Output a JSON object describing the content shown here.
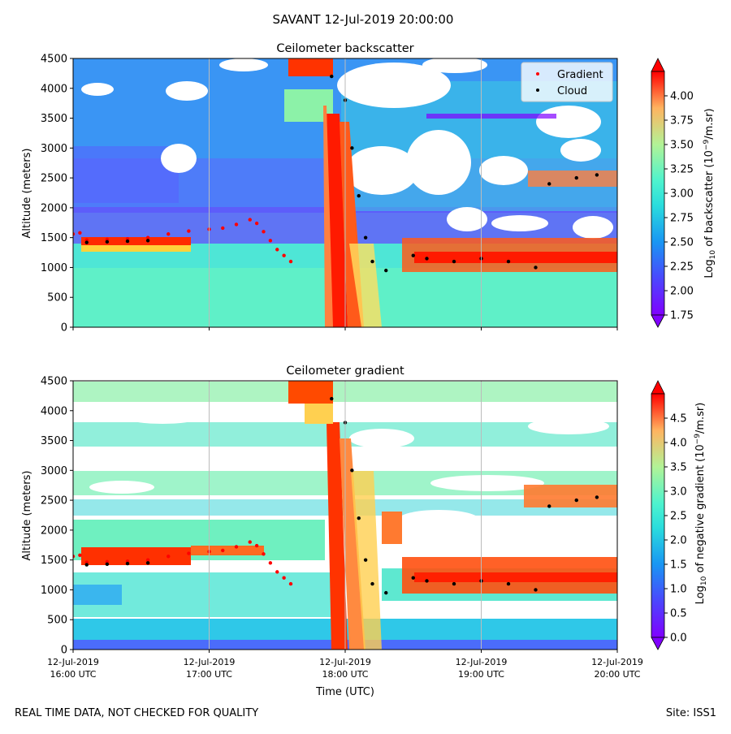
{
  "suptitle": "SAVANT 12-Jul-2019 20:00:00",
  "footer": {
    "left": "REAL TIME DATA, NOT CHECKED FOR QUALITY",
    "right": "Site: ISS1"
  },
  "chart_data": [
    {
      "type": "heatmap",
      "title": "Ceilometer backscatter",
      "xlabel": "",
      "ylabel": "Altitude (meters)",
      "ylim": [
        0,
        4500
      ],
      "yticks": [
        "0",
        "500",
        "1000",
        "1500",
        "2000",
        "2500",
        "3000",
        "3500",
        "4000",
        "4500"
      ],
      "xlim_hours_utc": [
        16,
        20
      ],
      "colorbar": {
        "label": "Log10 of backscatter (10^-9/m.sr)",
        "label_main": "Log",
        "label_sub": "10",
        "label_mid": " of backscatter (10",
        "label_sup": "−9",
        "label_end": "/m.sr)",
        "range": [
          1.75,
          4.25
        ],
        "ticks": [
          "1.75",
          "2.00",
          "2.25",
          "2.50",
          "2.75",
          "3.00",
          "3.25",
          "3.50",
          "3.75",
          "4.00"
        ],
        "colormap": "rainbow"
      },
      "legend": {
        "location": "top-right",
        "entries": [
          "Gradient",
          "Cloud"
        ],
        "colors": [
          "#ff0000",
          "#000000"
        ]
      }
    },
    {
      "type": "heatmap",
      "title": "Ceilometer gradient",
      "xlabel": "Time (UTC)",
      "ylabel": "Altitude (meters)",
      "ylim": [
        0,
        4500
      ],
      "yticks": [
        "0",
        "500",
        "1000",
        "1500",
        "2000",
        "2500",
        "3000",
        "3500",
        "4000",
        "4500"
      ],
      "xlim_hours_utc": [
        16,
        20
      ],
      "xticks": [
        {
          "date": "12-Jul-2019",
          "time": "16:00 UTC"
        },
        {
          "date": "12-Jul-2019",
          "time": "17:00 UTC"
        },
        {
          "date": "12-Jul-2019",
          "time": "18:00 UTC"
        },
        {
          "date": "12-Jul-2019",
          "time": "19:00 UTC"
        },
        {
          "date": "12-Jul-2019",
          "time": "20:00 UTC"
        }
      ],
      "colorbar": {
        "label": "Log10 of negative gradient (10^-9/m.sr)",
        "label_main": "Log",
        "label_sub": "10",
        "label_mid": " of negative gradient (10",
        "label_sup": "−9",
        "label_end": "/m.sr)",
        "range": [
          0,
          5
        ],
        "ticks": [
          "0.0",
          "0.5",
          "1.0",
          "1.5",
          "2.0",
          "2.5",
          "3.0",
          "3.5",
          "4.0",
          "4.5"
        ],
        "colormap": "rainbow"
      }
    }
  ],
  "series_points": {
    "gradient_layer": [
      [
        16.0,
        1560
      ],
      [
        16.05,
        1580
      ],
      [
        16.1,
        1460
      ],
      [
        16.25,
        1470
      ],
      [
        16.4,
        1480
      ],
      [
        16.55,
        1500
      ],
      [
        16.7,
        1560
      ],
      [
        16.85,
        1610
      ],
      [
        17.0,
        1640
      ],
      [
        17.1,
        1660
      ],
      [
        17.2,
        1720
      ],
      [
        17.3,
        1800
      ],
      [
        17.35,
        1740
      ],
      [
        17.4,
        1600
      ],
      [
        17.45,
        1450
      ],
      [
        17.5,
        1300
      ],
      [
        17.55,
        1200
      ],
      [
        17.6,
        1100
      ]
    ],
    "cloud_layer": [
      [
        16.1,
        1420
      ],
      [
        16.25,
        1430
      ],
      [
        16.4,
        1440
      ],
      [
        16.55,
        1450
      ],
      [
        17.9,
        4200
      ],
      [
        18.0,
        3800
      ],
      [
        18.05,
        3000
      ],
      [
        18.1,
        2200
      ],
      [
        18.15,
        1500
      ],
      [
        18.2,
        1100
      ],
      [
        18.3,
        950
      ],
      [
        18.5,
        1200
      ],
      [
        18.6,
        1150
      ],
      [
        18.8,
        1100
      ],
      [
        19.0,
        1150
      ],
      [
        19.2,
        1100
      ],
      [
        19.4,
        1000
      ],
      [
        19.5,
        2400
      ],
      [
        19.7,
        2500
      ],
      [
        19.85,
        2550
      ]
    ]
  }
}
